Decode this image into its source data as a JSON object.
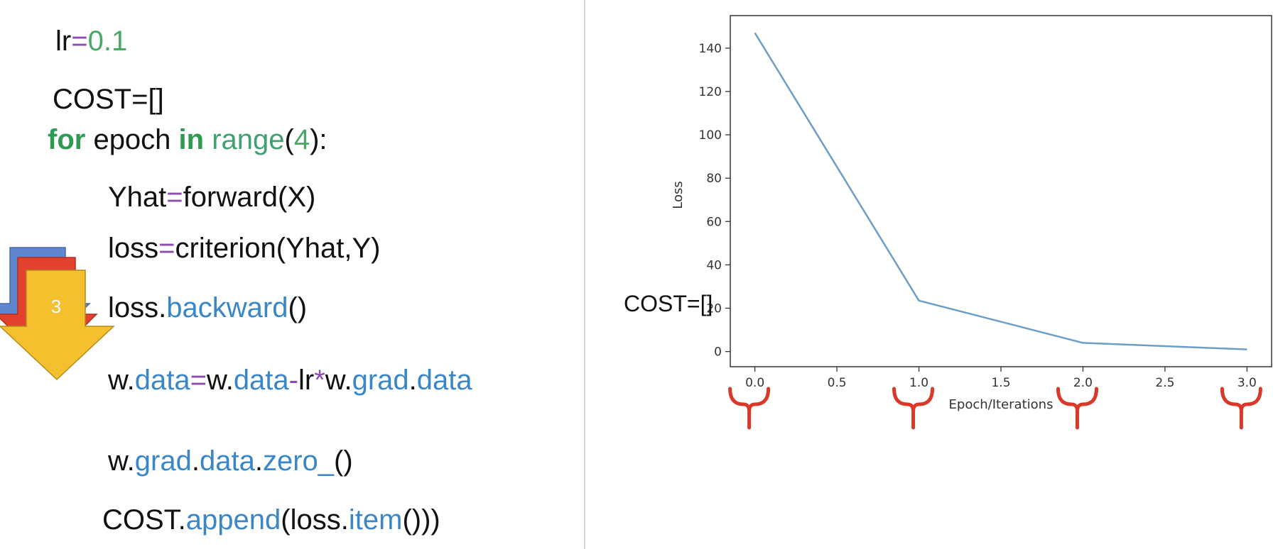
{
  "code": {
    "lines": [
      [
        {
          "t": "lr",
          "c": ""
        },
        {
          "t": "=",
          "c": "op"
        },
        {
          "t": "0.1",
          "c": "num"
        }
      ],
      [
        {
          "t": "COST=[]",
          "c": ""
        }
      ],
      [
        {
          "t": "for",
          "c": "kw"
        },
        {
          "t": " epoch ",
          "c": ""
        },
        {
          "t": "in",
          "c": "kw"
        },
        {
          "t": " ",
          "c": ""
        },
        {
          "t": "range",
          "c": "fn"
        },
        {
          "t": "(",
          "c": ""
        },
        {
          "t": "4",
          "c": "num"
        },
        {
          "t": "):",
          "c": ""
        }
      ],
      [
        {
          "t": "Yhat",
          "c": ""
        },
        {
          "t": "=",
          "c": "op"
        },
        {
          "t": "forward(X)",
          "c": ""
        }
      ],
      [
        {
          "t": "loss",
          "c": ""
        },
        {
          "t": "=",
          "c": "op"
        },
        {
          "t": "criterion(Yhat,Y)",
          "c": ""
        }
      ],
      [
        {
          "t": "loss.",
          "c": ""
        },
        {
          "t": "backward",
          "c": "attr"
        },
        {
          "t": "()",
          "c": ""
        }
      ],
      [
        {
          "t": "w.",
          "c": ""
        },
        {
          "t": "data",
          "c": "attr"
        },
        {
          "t": "=",
          "c": "op"
        },
        {
          "t": "w.",
          "c": ""
        },
        {
          "t": "data",
          "c": "attr"
        },
        {
          "t": "-",
          "c": "op"
        },
        {
          "t": "lr",
          "c": ""
        },
        {
          "t": "*",
          "c": "op"
        },
        {
          "t": "w.",
          "c": ""
        },
        {
          "t": "grad",
          "c": "attr"
        },
        {
          "t": ".",
          "c": ""
        },
        {
          "t": "data",
          "c": "attr"
        }
      ],
      [
        {
          "t": "w.",
          "c": ""
        },
        {
          "t": "grad",
          "c": "attr"
        },
        {
          "t": ".",
          "c": ""
        },
        {
          "t": "data",
          "c": "attr"
        },
        {
          "t": ".",
          "c": ""
        },
        {
          "t": "zero_",
          "c": "attr"
        },
        {
          "t": "()",
          "c": ""
        }
      ],
      [
        {
          "t": "COST.",
          "c": ""
        },
        {
          "t": "append",
          "c": "attr"
        },
        {
          "t": "(loss.",
          "c": ""
        },
        {
          "t": "item",
          "c": "attr"
        },
        {
          "t": "()))",
          "c": ""
        }
      ]
    ]
  },
  "arrow": {
    "label": "3",
    "colors": {
      "front": "#f5c02e",
      "middle": "#e2412e",
      "back": "#5f86cf"
    }
  },
  "overlay_label": "COST=[]",
  "colors": {
    "line": "#6a9ec9",
    "brace": "#d9382a",
    "keyword": "#2e9a52",
    "number": "#4aa866",
    "operator": "#8e4bb0",
    "attribute": "#3a86c6"
  },
  "chart_data": {
    "type": "line",
    "x": [
      0.0,
      1.0,
      2.0,
      3.0
    ],
    "y": [
      147,
      23.5,
      4,
      1
    ],
    "xlabel": "Epoch/Iterations",
    "ylabel": "Loss",
    "xticks": [
      "0.0",
      "0.5",
      "1.0",
      "1.5",
      "2.0",
      "2.5",
      "3.0"
    ],
    "yticks": [
      "0",
      "20",
      "40",
      "60",
      "80",
      "100",
      "120",
      "140"
    ],
    "xlim": [
      -0.15,
      3.15
    ],
    "ylim": [
      -7,
      155
    ],
    "grid": false,
    "brace_marks_at_x": [
      0.0,
      1.0,
      2.0,
      3.0
    ]
  }
}
